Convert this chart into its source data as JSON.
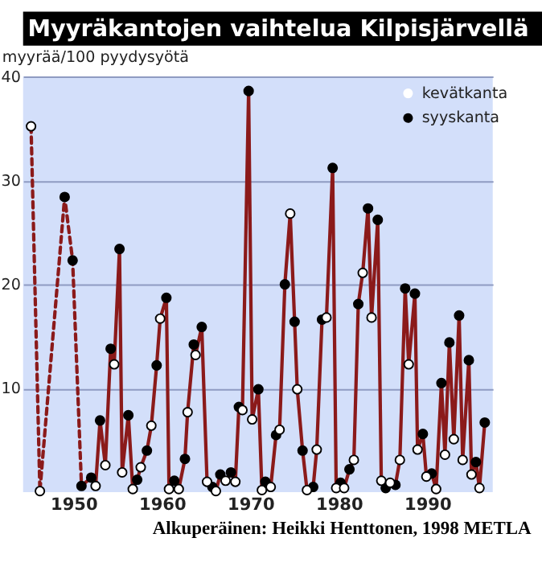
{
  "chart_data": {
    "type": "scatter",
    "title": "Myyräkantojen vaihtelua Kilpisjärvellä",
    "ylabel": "myyrää/100 pyydysyötä",
    "xlim": [
      1944.3,
      1997.4
    ],
    "ylim": [
      0,
      40
    ],
    "xticks": [
      1950,
      1960,
      1970,
      1980,
      1990
    ],
    "yticks": [
      10,
      20,
      30,
      40
    ],
    "grid": "y",
    "legend": "top right",
    "annotations": [
      "Alkuperäinen: Heikki Henttonen, 1998 METLA"
    ],
    "series": [
      {
        "type": "line",
        "line_style": "dashed",
        "color": "#8b1a1a",
        "x": [
          1945.2,
          1946.2,
          1949.0,
          1949.9,
          1950.9
        ],
        "values": [
          35.2,
          0.1,
          28.4,
          22.3,
          0.6
        ]
      },
      {
        "type": "line",
        "line_style": "solid",
        "color": "#8b1a1a",
        "x": [
          1950.9,
          1952.0,
          1952.5,
          1953.0,
          1953.6,
          1954.2,
          1954.6,
          1955.2,
          1955.5,
          1956.2,
          1956.7,
          1957.2,
          1957.6,
          1958.3,
          1958.8,
          1959.4,
          1959.8,
          1960.5,
          1960.8,
          1961.4,
          1961.9,
          1962.6,
          1962.9,
          1963.6,
          1963.8,
          1964.5,
          1965.1,
          1965.7,
          1966.1,
          1966.6,
          1967.2,
          1967.8,
          1968.3,
          1968.7,
          1969.1,
          1969.8,
          1970.2,
          1970.9,
          1971.3,
          1971.7,
          1972.3,
          1972.9,
          1973.3,
          1973.9,
          1974.5,
          1975.0,
          1975.3,
          1975.9,
          1976.4,
          1977.1,
          1977.5,
          1978.1,
          1978.6,
          1979.3,
          1979.7,
          1980.2,
          1980.6,
          1981.2,
          1981.7,
          1982.2,
          1982.7,
          1983.3,
          1983.7,
          1984.4,
          1984.8,
          1985.3,
          1985.8,
          1986.4,
          1986.9,
          1987.5,
          1987.9,
          1988.6,
          1988.9,
          1989.5,
          1989.9,
          1990.5,
          1991.0,
          1991.6,
          1992.0,
          1992.5,
          1993.0,
          1993.6,
          1994.0,
          1994.7,
          1995.0,
          1995.5,
          1995.9,
          1996.5
        ],
        "values": [
          0.6,
          1.4,
          0.6,
          6.9,
          2.6,
          13.8,
          12.3,
          23.4,
          1.9,
          7.4,
          0.3,
          1.2,
          2.4,
          4.0,
          6.4,
          12.2,
          16.7,
          18.7,
          0.3,
          1.1,
          0.3,
          3.2,
          7.7,
          14.2,
          13.2,
          15.9,
          1.0,
          0.5,
          0.1,
          1.7,
          1.1,
          1.9,
          1.0,
          8.2,
          7.9,
          38.6,
          7.0,
          9.9,
          0.2,
          1.0,
          0.5,
          5.5,
          6.0,
          20.0,
          26.8,
          16.4,
          9.9,
          4.0,
          0.2,
          0.5,
          4.1,
          16.6,
          16.8,
          31.2,
          0.4,
          0.9,
          0.4,
          2.2,
          3.1,
          18.1,
          21.1,
          27.3,
          16.8,
          26.2,
          1.1,
          0.4,
          0.9,
          0.7,
          3.1,
          19.6,
          12.3,
          19.1,
          4.1,
          5.6,
          1.5,
          1.8,
          0.3,
          10.5,
          3.6,
          14.4,
          5.1,
          17.0,
          3.1,
          12.7,
          1.7,
          2.9,
          0.4,
          6.7
        ]
      },
      {
        "name": "kevätkanta",
        "marker": "circle",
        "color": "#ffffff",
        "x": [
          1945.2,
          1946.2,
          1952.5,
          1953.6,
          1954.6,
          1955.5,
          1956.7,
          1957.6,
          1958.8,
          1959.8,
          1960.8,
          1961.9,
          1962.9,
          1963.8,
          1965.1,
          1966.1,
          1967.2,
          1968.3,
          1969.1,
          1970.2,
          1971.3,
          1972.3,
          1973.3,
          1974.5,
          1975.3,
          1976.4,
          1977.5,
          1978.6,
          1979.7,
          1980.6,
          1981.7,
          1982.7,
          1983.7,
          1984.8,
          1985.8,
          1986.9,
          1987.9,
          1988.9,
          1989.9,
          1991.0,
          1992.0,
          1993.0,
          1994.0,
          1995.0,
          1995.9
        ],
        "values": [
          35.2,
          0.1,
          0.6,
          2.6,
          12.3,
          1.9,
          0.3,
          2.4,
          6.4,
          16.7,
          0.3,
          0.3,
          7.7,
          13.2,
          1.0,
          0.1,
          1.1,
          1.0,
          7.9,
          7.0,
          0.2,
          0.5,
          6.0,
          26.8,
          9.9,
          0.2,
          4.1,
          16.8,
          0.4,
          0.4,
          3.1,
          21.1,
          16.8,
          1.1,
          0.9,
          3.1,
          12.3,
          4.1,
          1.5,
          0.3,
          3.6,
          5.1,
          3.1,
          1.7,
          0.4
        ]
      },
      {
        "name": "syyskanta",
        "marker": "circle",
        "color": "#000000",
        "x": [
          1949.0,
          1949.9,
          1950.9,
          1952.0,
          1953.0,
          1954.2,
          1955.2,
          1956.2,
          1957.2,
          1958.3,
          1959.4,
          1960.5,
          1961.4,
          1962.6,
          1963.6,
          1964.5,
          1965.7,
          1966.6,
          1967.8,
          1968.7,
          1969.8,
          1970.9,
          1971.7,
          1972.9,
          1973.9,
          1975.0,
          1975.9,
          1977.1,
          1978.1,
          1979.3,
          1980.2,
          1981.2,
          1982.2,
          1983.3,
          1984.4,
          1985.3,
          1986.4,
          1987.5,
          1988.6,
          1989.5,
          1990.5,
          1991.6,
          1992.5,
          1993.6,
          1994.7,
          1995.5,
          1996.5
        ],
        "values": [
          28.4,
          22.3,
          0.6,
          1.4,
          6.9,
          13.8,
          23.4,
          7.4,
          1.2,
          4.0,
          12.2,
          18.7,
          1.1,
          3.2,
          14.2,
          15.9,
          0.5,
          1.7,
          1.9,
          8.2,
          38.6,
          9.9,
          1.0,
          5.5,
          20.0,
          16.4,
          4.0,
          0.5,
          16.6,
          31.2,
          0.9,
          2.2,
          18.1,
          27.3,
          26.2,
          0.4,
          0.7,
          19.6,
          19.1,
          5.6,
          1.8,
          10.5,
          14.4,
          17.0,
          12.7,
          2.9,
          6.7
        ]
      }
    ]
  }
}
